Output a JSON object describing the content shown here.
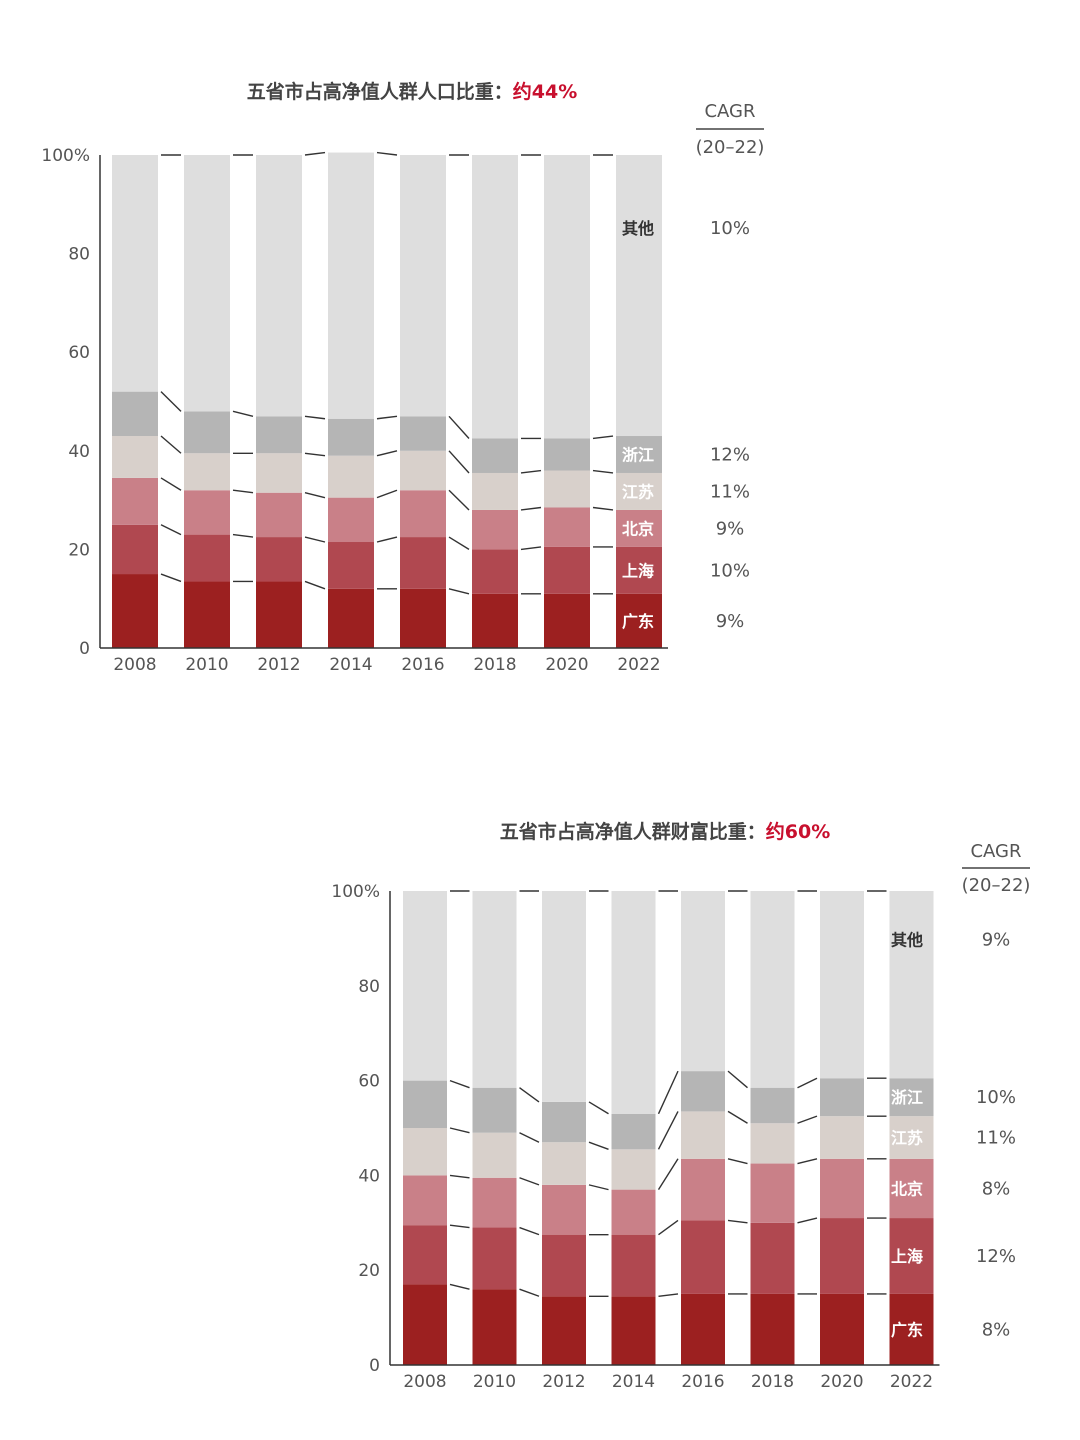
{
  "colors": {
    "广东": "#9c2020",
    "上海": "#b04850",
    "北京": "#c98088",
    "江苏": "#d8d0cb",
    "浙江": "#b5b5b5",
    "其他": "#dedede",
    "highlight": "#c8102e"
  },
  "chart_data": [
    {
      "type": "bar",
      "stacked": true,
      "title": "五省市占高净值人群人口比重：",
      "title_highlight": "约44%",
      "categories": [
        "2008",
        "2010",
        "2012",
        "2014",
        "2016",
        "2018",
        "2020",
        "2022"
      ],
      "yticks": [
        "0",
        "20",
        "40",
        "60",
        "80",
        "100%"
      ],
      "ylim": [
        0,
        100
      ],
      "cagr_header": "CAGR",
      "cagr_period": "(20–22)",
      "series": [
        {
          "name": "广东",
          "values": [
            15,
            13.5,
            13.5,
            12,
            12,
            11,
            11,
            11
          ],
          "cagr": "9%"
        },
        {
          "name": "上海",
          "values": [
            10,
            9.5,
            9,
            9.5,
            10.5,
            9,
            9.5,
            9.5
          ],
          "cagr": "10%"
        },
        {
          "name": "北京",
          "values": [
            9.5,
            9,
            9,
            9,
            9.5,
            8,
            8,
            7.5
          ],
          "cagr": "9%"
        },
        {
          "name": "江苏",
          "values": [
            8.5,
            7.5,
            8,
            8.5,
            8,
            7.5,
            7.5,
            7.5
          ],
          "cagr": "11%"
        },
        {
          "name": "浙江",
          "values": [
            9,
            8.5,
            7.5,
            7.5,
            7,
            7,
            6.5,
            7.5
          ],
          "cagr": "12%"
        },
        {
          "name": "其他",
          "values": [
            48,
            52,
            53,
            54,
            53,
            57.5,
            57.5,
            57
          ],
          "cagr": "10%"
        }
      ]
    },
    {
      "type": "bar",
      "stacked": true,
      "title": "五省市占高净值人群财富比重：",
      "title_highlight": "约60%",
      "categories": [
        "2008",
        "2010",
        "2012",
        "2014",
        "2016",
        "2018",
        "2020",
        "2022"
      ],
      "yticks": [
        "0",
        "20",
        "40",
        "60",
        "80",
        "100%"
      ],
      "ylim": [
        0,
        100
      ],
      "cagr_header": "CAGR",
      "cagr_period": "(20–22)",
      "series": [
        {
          "name": "广东",
          "values": [
            17,
            16,
            14.5,
            14.5,
            15,
            15,
            15,
            15
          ],
          "cagr": "8%"
        },
        {
          "name": "上海",
          "values": [
            12.5,
            13,
            13,
            13,
            15.5,
            15,
            16,
            16
          ],
          "cagr": "12%"
        },
        {
          "name": "北京",
          "values": [
            10.5,
            10.5,
            10.5,
            9.5,
            13,
            12.5,
            12.5,
            12.5
          ],
          "cagr": "8%"
        },
        {
          "name": "江苏",
          "values": [
            10,
            9.5,
            9,
            8.5,
            10,
            8.5,
            9,
            9
          ],
          "cagr": "11%"
        },
        {
          "name": "浙江",
          "values": [
            10,
            9.5,
            8.5,
            7.5,
            8.5,
            7.5,
            8,
            8
          ],
          "cagr": "10%"
        },
        {
          "name": "其他",
          "values": [
            40,
            41.5,
            44.5,
            47,
            38,
            41.5,
            39.5,
            39.5
          ],
          "cagr": "9%"
        }
      ]
    }
  ]
}
